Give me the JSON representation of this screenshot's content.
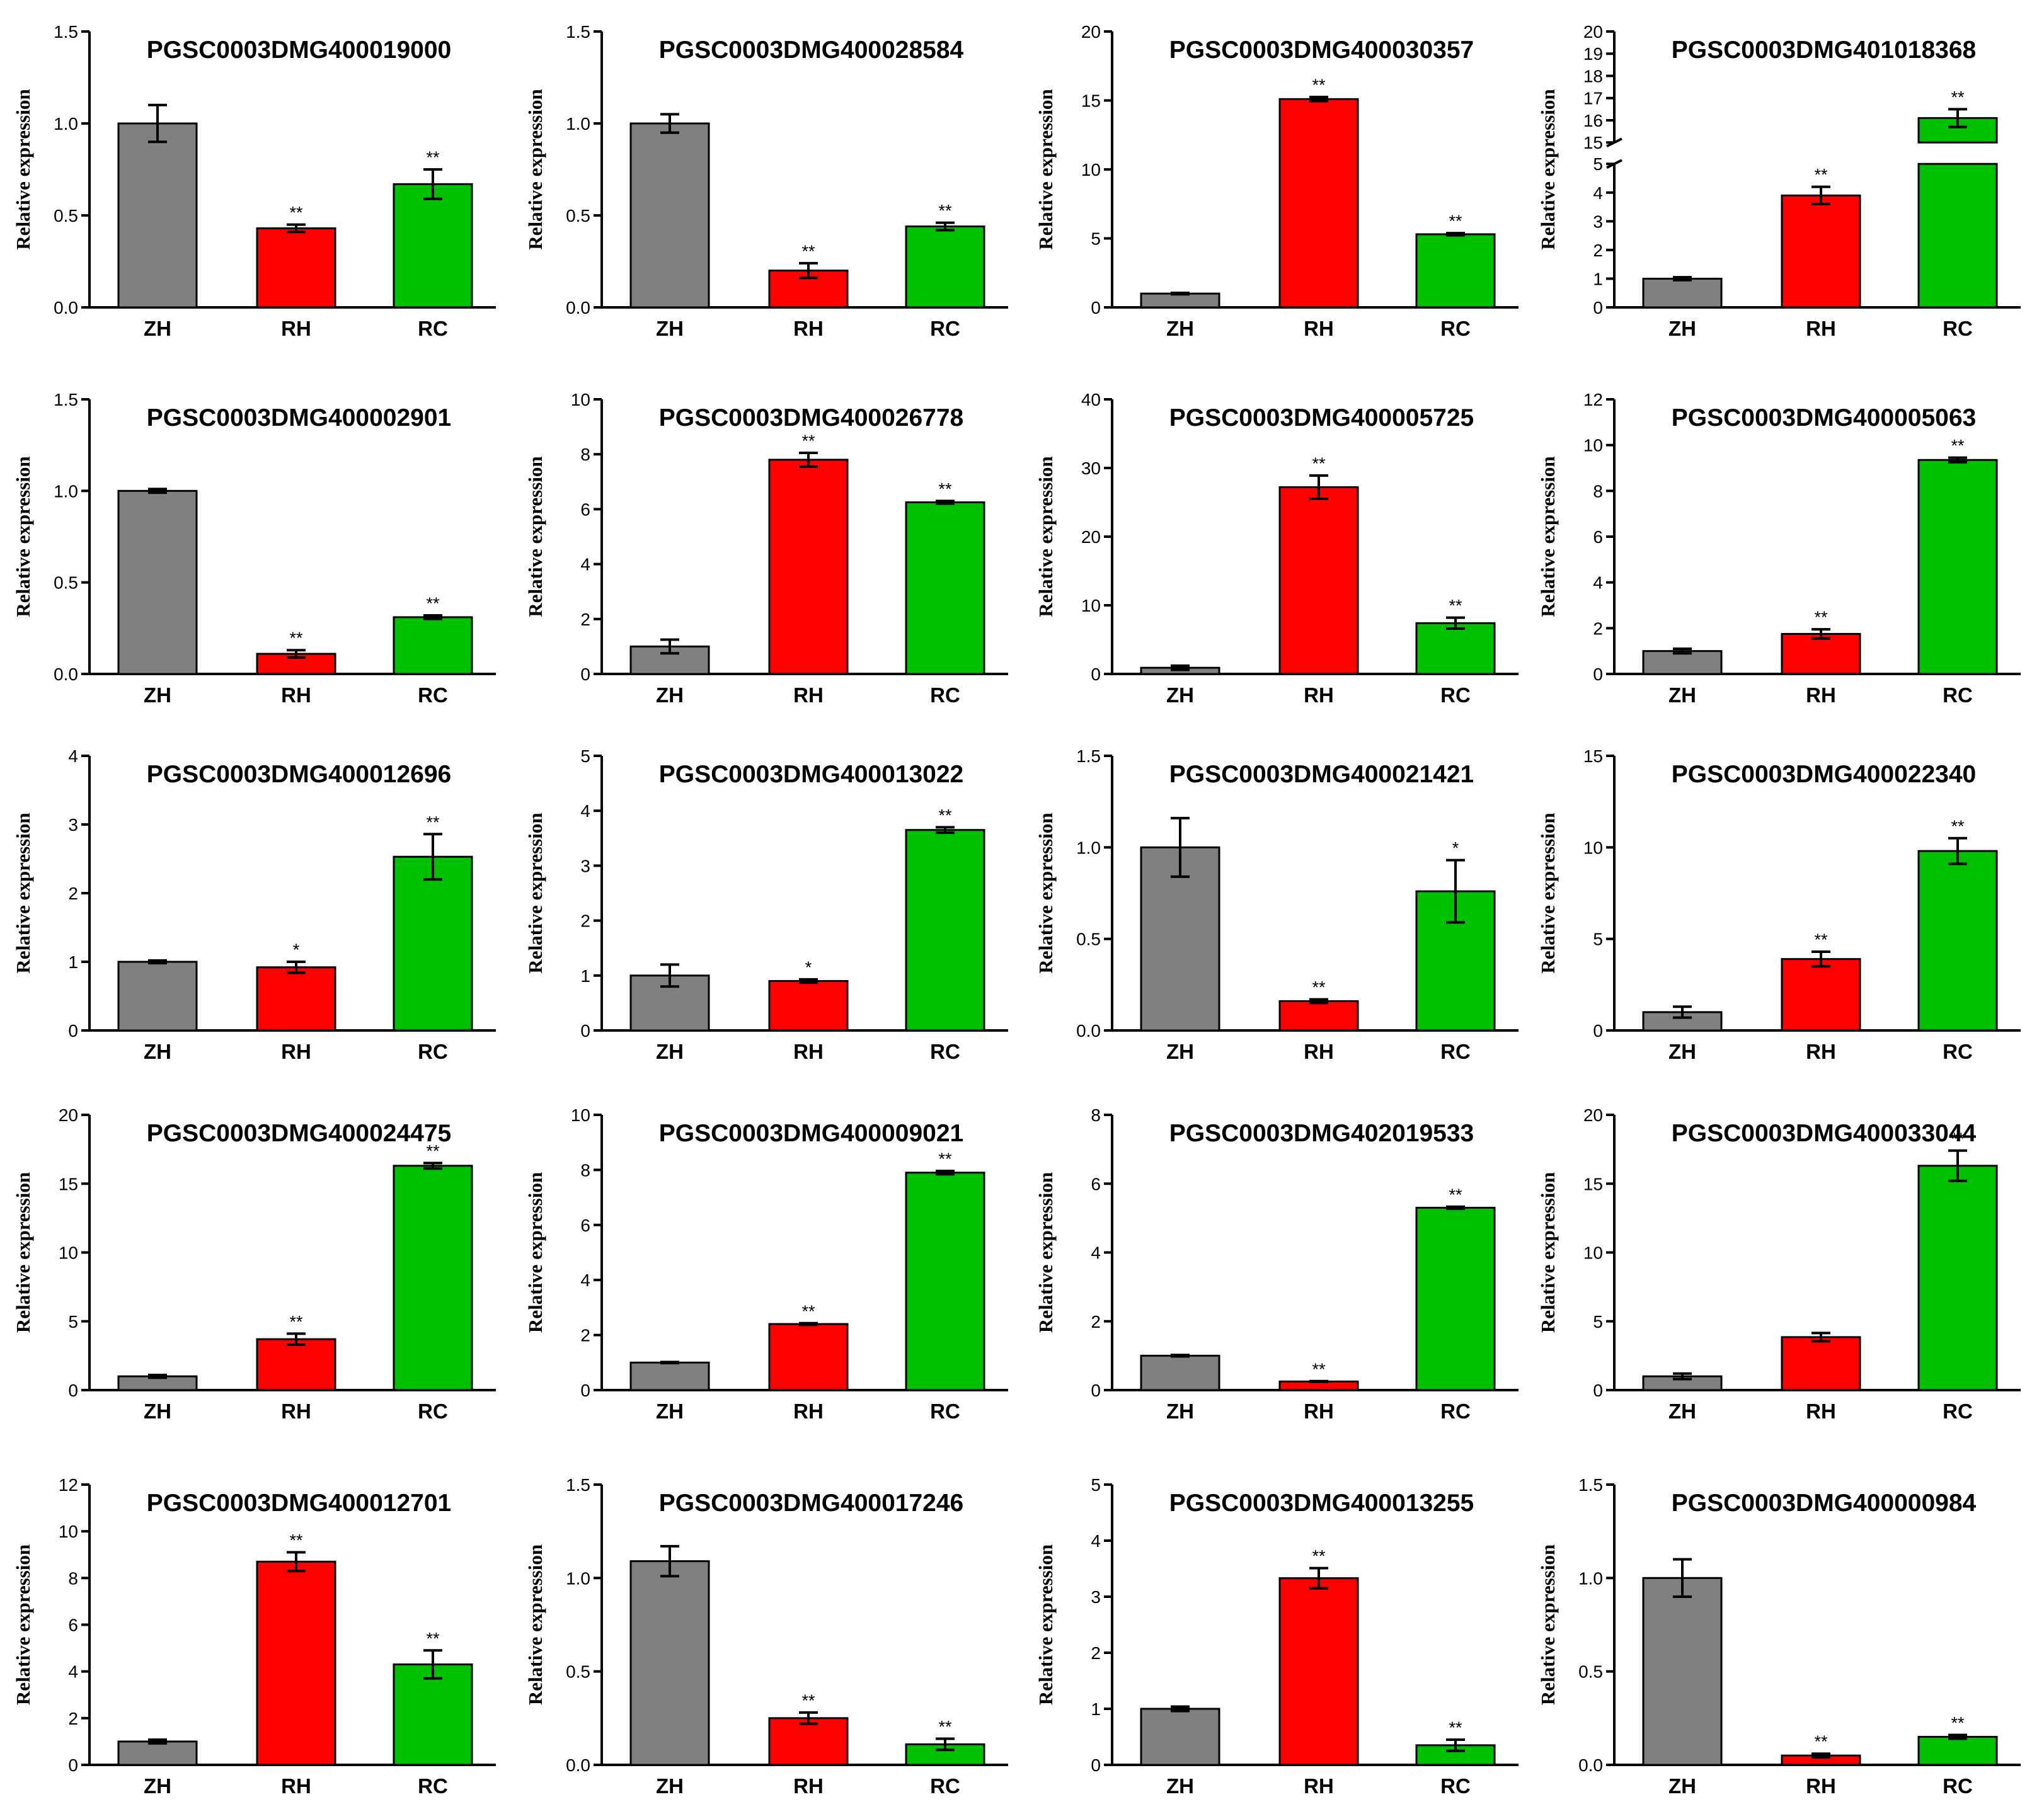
{
  "figure": {
    "colors": {
      "ZH": "#808080",
      "RH": "#ff0000",
      "RC": "#00c000",
      "axis": "#000000"
    }
  },
  "chart_data": [
    {
      "type": "bar",
      "title": "PGSC0003DMG400019000",
      "ylabel": "Relative expression",
      "categories": [
        "ZH",
        "RH",
        "RC"
      ],
      "values": [
        1.0,
        0.43,
        0.67
      ],
      "errors": [
        0.1,
        0.02,
        0.08
      ],
      "significance": [
        "",
        "**",
        "**"
      ],
      "ylim": [
        0,
        1.5
      ],
      "yticks": [
        0.0,
        0.5,
        1.0,
        1.5
      ],
      "ytick_labels": [
        "0.0",
        "0.5",
        "1.0",
        "1.5"
      ]
    },
    {
      "type": "bar",
      "title": "PGSC0003DMG400028584",
      "ylabel": "Relative expression",
      "categories": [
        "ZH",
        "RH",
        "RC"
      ],
      "values": [
        1.0,
        0.2,
        0.44
      ],
      "errors": [
        0.05,
        0.04,
        0.02
      ],
      "significance": [
        "",
        "**",
        "**"
      ],
      "ylim": [
        0,
        1.5
      ],
      "yticks": [
        0.0,
        0.5,
        1.0,
        1.5
      ],
      "ytick_labels": [
        "0.0",
        "0.5",
        "1.0",
        "1.5"
      ]
    },
    {
      "type": "bar",
      "title": "PGSC0003DMG400030357",
      "ylabel": "Relative expression",
      "categories": [
        "ZH",
        "RH",
        "RC"
      ],
      "values": [
        1.0,
        15.1,
        5.3
      ],
      "errors": [
        0.05,
        0.15,
        0.08
      ],
      "significance": [
        "",
        "**",
        "**"
      ],
      "ylim": [
        0,
        20
      ],
      "yticks": [
        0,
        5,
        10,
        15,
        20
      ],
      "ytick_labels": [
        "0",
        "5",
        "10",
        "15",
        "20"
      ]
    },
    {
      "type": "bar",
      "title": "PGSC0003DMG401018368",
      "ylabel": "Relative expression",
      "categories": [
        "ZH",
        "RH",
        "RC"
      ],
      "values": [
        1.0,
        3.9,
        16.1
      ],
      "errors": [
        0.05,
        0.3,
        0.4
      ],
      "significance": [
        "",
        "**",
        "**"
      ],
      "ylim": [
        0,
        20
      ],
      "axis_break": [
        5,
        15
      ],
      "yticks": [
        0,
        1,
        2,
        3,
        4,
        5,
        15,
        16,
        17,
        18,
        19,
        20
      ],
      "ytick_labels": [
        "0",
        "1",
        "2",
        "3",
        "4",
        "5",
        "15",
        "16",
        "17",
        "18",
        "19",
        "20"
      ]
    },
    {
      "type": "bar",
      "title": "PGSC0003DMG400002901",
      "ylabel": "Relative expression",
      "categories": [
        "ZH",
        "RH",
        "RC"
      ],
      "values": [
        1.0,
        0.11,
        0.31
      ],
      "errors": [
        0.01,
        0.02,
        0.01
      ],
      "significance": [
        "",
        "**",
        "**"
      ],
      "ylim": [
        0,
        1.5
      ],
      "yticks": [
        0.0,
        0.5,
        1.0,
        1.5
      ],
      "ytick_labels": [
        "0.0",
        "0.5",
        "1.0",
        "1.5"
      ]
    },
    {
      "type": "bar",
      "title": "PGSC0003DMG400026778",
      "ylabel": "Relative expression",
      "categories": [
        "ZH",
        "RH",
        "RC"
      ],
      "values": [
        1.0,
        7.8,
        6.25
      ],
      "errors": [
        0.25,
        0.25,
        0.05
      ],
      "significance": [
        "",
        "**",
        "**"
      ],
      "ylim": [
        0,
        10
      ],
      "yticks": [
        0,
        2,
        4,
        6,
        8,
        10
      ],
      "ytick_labels": [
        "0",
        "2",
        "4",
        "6",
        "8",
        "10"
      ]
    },
    {
      "type": "bar",
      "title": "PGSC0003DMG400005725",
      "ylabel": "Relative expression",
      "categories": [
        "ZH",
        "RH",
        "RC"
      ],
      "values": [
        0.9,
        27.2,
        7.4
      ],
      "errors": [
        0.3,
        1.7,
        0.8
      ],
      "significance": [
        "",
        "**",
        "**"
      ],
      "ylim": [
        0,
        40
      ],
      "yticks": [
        0,
        10,
        20,
        30,
        40
      ],
      "ytick_labels": [
        "0",
        "10",
        "20",
        "30",
        "40"
      ]
    },
    {
      "type": "bar",
      "title": "PGSC0003DMG400005063",
      "ylabel": "Relative expression",
      "categories": [
        "ZH",
        "RH",
        "RC"
      ],
      "values": [
        1.0,
        1.75,
        9.35
      ],
      "errors": [
        0.1,
        0.2,
        0.1
      ],
      "significance": [
        "",
        "**",
        "**"
      ],
      "ylim": [
        0,
        12
      ],
      "yticks": [
        0,
        2,
        4,
        6,
        8,
        10,
        12
      ],
      "ytick_labels": [
        "0",
        "2",
        "4",
        "6",
        "8",
        "10",
        "12"
      ]
    },
    {
      "type": "bar",
      "title": "PGSC0003DMG400012696",
      "ylabel": "Relative expression",
      "categories": [
        "ZH",
        "RH",
        "RC"
      ],
      "values": [
        1.0,
        0.92,
        2.53
      ],
      "errors": [
        0.02,
        0.08,
        0.33
      ],
      "significance": [
        "",
        "*",
        "**"
      ],
      "ylim": [
        0,
        4
      ],
      "yticks": [
        0,
        1,
        2,
        3,
        4
      ],
      "ytick_labels": [
        "0",
        "1",
        "2",
        "3",
        "4"
      ]
    },
    {
      "type": "bar",
      "title": "PGSC0003DMG400013022",
      "ylabel": "Relative expression",
      "categories": [
        "ZH",
        "RH",
        "RC"
      ],
      "values": [
        1.0,
        0.9,
        3.65
      ],
      "errors": [
        0.2,
        0.03,
        0.05
      ],
      "significance": [
        "",
        "*",
        "**"
      ],
      "ylim": [
        0,
        5
      ],
      "yticks": [
        0,
        1,
        2,
        3,
        4,
        5
      ],
      "ytick_labels": [
        "0",
        "1",
        "2",
        "3",
        "4",
        "5"
      ]
    },
    {
      "type": "bar",
      "title": "PGSC0003DMG400021421",
      "ylabel": "Relative expression",
      "categories": [
        "ZH",
        "RH",
        "RC"
      ],
      "values": [
        1.0,
        0.16,
        0.76
      ],
      "errors": [
        0.16,
        0.01,
        0.17
      ],
      "significance": [
        "",
        "**",
        "*"
      ],
      "ylim": [
        0,
        1.5
      ],
      "yticks": [
        0.0,
        0.5,
        1.0,
        1.5
      ],
      "ytick_labels": [
        "0.0",
        "0.5",
        "1.0",
        "1.5"
      ]
    },
    {
      "type": "bar",
      "title": "PGSC0003DMG400022340",
      "ylabel": "Relative expression",
      "categories": [
        "ZH",
        "RH",
        "RC"
      ],
      "values": [
        1.0,
        3.9,
        9.8
      ],
      "errors": [
        0.3,
        0.4,
        0.7
      ],
      "significance": [
        "",
        "**",
        "**"
      ],
      "ylim": [
        0,
        15
      ],
      "yticks": [
        0,
        5,
        10,
        15
      ],
      "ytick_labels": [
        "0",
        "5",
        "10",
        "15"
      ]
    },
    {
      "type": "bar",
      "title": "PGSC0003DMG400024475",
      "ylabel": "Relative expression",
      "categories": [
        "ZH",
        "RH",
        "RC"
      ],
      "values": [
        1.0,
        3.7,
        16.3
      ],
      "errors": [
        0.1,
        0.4,
        0.2
      ],
      "significance": [
        "",
        "**",
        "**"
      ],
      "ylim": [
        0,
        20
      ],
      "yticks": [
        0,
        5,
        10,
        15,
        20
      ],
      "ytick_labels": [
        "0",
        "5",
        "10",
        "15",
        "20"
      ]
    },
    {
      "type": "bar",
      "title": "PGSC0003DMG400009021",
      "ylabel": "Relative expression",
      "categories": [
        "ZH",
        "RH",
        "RC"
      ],
      "values": [
        1.0,
        2.4,
        7.9
      ],
      "errors": [
        0.02,
        0.03,
        0.06
      ],
      "significance": [
        "",
        "**",
        "**"
      ],
      "ylim": [
        0,
        10
      ],
      "yticks": [
        0,
        2,
        4,
        6,
        8,
        10
      ],
      "ytick_labels": [
        "0",
        "2",
        "4",
        "6",
        "8",
        "10"
      ]
    },
    {
      "type": "bar",
      "title": "PGSC0003DMG402019533",
      "ylabel": "Relative expression",
      "categories": [
        "ZH",
        "RH",
        "RC"
      ],
      "values": [
        1.0,
        0.25,
        5.3
      ],
      "errors": [
        0.02,
        0.01,
        0.03
      ],
      "significance": [
        "",
        "**",
        "**"
      ],
      "ylim": [
        0,
        8
      ],
      "yticks": [
        0,
        2,
        4,
        6,
        8
      ],
      "ytick_labels": [
        "0",
        "2",
        "4",
        "6",
        "8"
      ]
    },
    {
      "type": "bar",
      "title": "PGSC0003DMG400033044",
      "ylabel": "Relative expression",
      "categories": [
        "ZH",
        "RH",
        "RC"
      ],
      "values": [
        1.0,
        3.85,
        16.3
      ],
      "errors": [
        0.2,
        0.3,
        1.1
      ],
      "significance": [
        "",
        "",
        "**"
      ],
      "ylim": [
        0,
        20
      ],
      "yticks": [
        0,
        5,
        10,
        15,
        20
      ],
      "ytick_labels": [
        "0",
        "5",
        "10",
        "15",
        "20"
      ]
    },
    {
      "type": "bar",
      "title": "PGSC0003DMG400012701",
      "ylabel": "Relative expression",
      "categories": [
        "ZH",
        "RH",
        "RC"
      ],
      "values": [
        1.0,
        8.7,
        4.3
      ],
      "errors": [
        0.08,
        0.4,
        0.6
      ],
      "significance": [
        "",
        "**",
        "**"
      ],
      "ylim": [
        0,
        12
      ],
      "yticks": [
        0,
        2,
        4,
        6,
        8,
        10,
        12
      ],
      "ytick_labels": [
        "0",
        "2",
        "4",
        "6",
        "8",
        "10",
        "12"
      ]
    },
    {
      "type": "bar",
      "title": "PGSC0003DMG400017246",
      "ylabel": "Relative expression",
      "categories": [
        "ZH",
        "RH",
        "RC"
      ],
      "values": [
        1.09,
        0.25,
        0.11
      ],
      "errors": [
        0.08,
        0.03,
        0.03
      ],
      "significance": [
        "",
        "**",
        "**"
      ],
      "ylim": [
        0,
        1.5
      ],
      "yticks": [
        0.0,
        0.5,
        1.0,
        1.5
      ],
      "ytick_labels": [
        "0.0",
        "0.5",
        "1.0",
        "1.5"
      ]
    },
    {
      "type": "bar",
      "title": "PGSC0003DMG400013255",
      "ylabel": "Relative expression",
      "categories": [
        "ZH",
        "RH",
        "RC"
      ],
      "values": [
        1.0,
        3.33,
        0.35
      ],
      "errors": [
        0.04,
        0.18,
        0.1
      ],
      "significance": [
        "",
        "**",
        "**"
      ],
      "ylim": [
        0,
        5
      ],
      "yticks": [
        0,
        1,
        2,
        3,
        4,
        5
      ],
      "ytick_labels": [
        "0",
        "1",
        "2",
        "3",
        "4",
        "5"
      ]
    },
    {
      "type": "bar",
      "title": "PGSC0003DMG400000984",
      "ylabel": "Relative expression",
      "categories": [
        "ZH",
        "RH",
        "RC"
      ],
      "values": [
        1.0,
        0.05,
        0.15
      ],
      "errors": [
        0.1,
        0.01,
        0.01
      ],
      "significance": [
        "",
        "**",
        "**"
      ],
      "ylim": [
        0,
        1.5
      ],
      "yticks": [
        0.0,
        0.5,
        1.0,
        1.5
      ],
      "ytick_labels": [
        "0.0",
        "0.5",
        "1.0",
        "1.5"
      ]
    }
  ]
}
